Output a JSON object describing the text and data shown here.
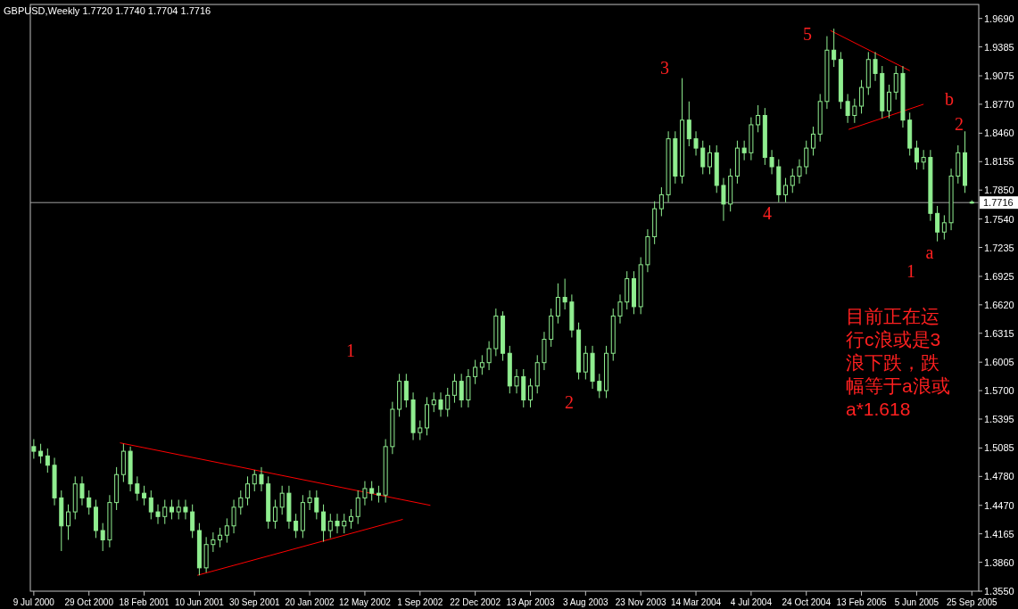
{
  "chart_data": {
    "type": "candlestick",
    "title": "GBPUSD,Weekly  1.7720 1.7740 1.7704 1.7716",
    "color": "#90ee90",
    "x": [
      "2000-07-09",
      "2000-07-23",
      "2000-08-06",
      "2000-08-20",
      "2000-09-03",
      "2000-09-17",
      "2000-10-01",
      "2000-10-15",
      "2000-10-29",
      "2000-11-12",
      "2000-11-26",
      "2000-12-10",
      "2000-12-24",
      "2001-01-07",
      "2001-01-21",
      "2001-02-04",
      "2001-02-18",
      "2001-03-04",
      "2001-03-18",
      "2001-04-01",
      "2001-04-15",
      "2001-04-29",
      "2001-05-13",
      "2001-05-27",
      "2001-06-10",
      "2001-06-24",
      "2001-07-08",
      "2001-07-22",
      "2001-08-05",
      "2001-08-19",
      "2001-09-02",
      "2001-09-16",
      "2001-09-30",
      "2001-10-14",
      "2001-10-28",
      "2001-11-11",
      "2001-11-25",
      "2001-12-09",
      "2001-12-23",
      "2002-01-06",
      "2002-01-20",
      "2002-02-03",
      "2002-02-17",
      "2002-03-03",
      "2002-03-17",
      "2002-03-31",
      "2002-04-14",
      "2002-04-28",
      "2002-05-12",
      "2002-05-26",
      "2002-06-09",
      "2002-06-23",
      "2002-07-07",
      "2002-07-21",
      "2002-08-04",
      "2002-08-18",
      "2002-09-01",
      "2002-09-15",
      "2002-09-29",
      "2002-10-13",
      "2002-10-27",
      "2002-11-10",
      "2002-11-24",
      "2002-12-08",
      "2002-12-22",
      "2003-01-05",
      "2003-01-19",
      "2003-02-02",
      "2003-02-16",
      "2003-03-02",
      "2003-03-16",
      "2003-03-30",
      "2003-04-13",
      "2003-04-27",
      "2003-05-11",
      "2003-05-25",
      "2003-06-08",
      "2003-06-22",
      "2003-07-06",
      "2003-07-20",
      "2003-08-03",
      "2003-08-17",
      "2003-08-31",
      "2003-09-14",
      "2003-09-28",
      "2003-10-12",
      "2003-10-26",
      "2003-11-09",
      "2003-11-23",
      "2003-12-07",
      "2003-12-21",
      "2004-01-04",
      "2004-01-18",
      "2004-02-01",
      "2004-02-15",
      "2004-02-29",
      "2004-03-14",
      "2004-03-28",
      "2004-04-11",
      "2004-04-25",
      "2004-05-09",
      "2004-05-23",
      "2004-06-06",
      "2004-06-20",
      "2004-07-04",
      "2004-07-18",
      "2004-08-01",
      "2004-08-15",
      "2004-08-29",
      "2004-09-12",
      "2004-09-26",
      "2004-10-10",
      "2004-10-24",
      "2004-11-07",
      "2004-11-21",
      "2004-12-05",
      "2004-12-19",
      "2005-01-02",
      "2005-01-16",
      "2005-01-30",
      "2005-02-13",
      "2005-02-27",
      "2005-03-13",
      "2005-03-27",
      "2005-04-10",
      "2005-04-24",
      "2005-05-08",
      "2005-05-22",
      "2005-06-05",
      "2005-06-19",
      "2005-07-03",
      "2005-07-17",
      "2005-07-31",
      "2005-08-14",
      "2005-08-28",
      "2005-09-11",
      "2005-09-25"
    ],
    "ohlc": [
      [
        1.51,
        1.518,
        1.497,
        1.505
      ],
      [
        1.505,
        1.513,
        1.492,
        1.5
      ],
      [
        1.5,
        1.508,
        1.482,
        1.49
      ],
      [
        1.49,
        1.498,
        1.447,
        1.455
      ],
      [
        1.455,
        1.463,
        1.398,
        1.425
      ],
      [
        1.425,
        1.448,
        1.41,
        1.44
      ],
      [
        1.44,
        1.478,
        1.432,
        1.47
      ],
      [
        1.47,
        1.478,
        1.447,
        1.455
      ],
      [
        1.455,
        1.463,
        1.437,
        1.445
      ],
      [
        1.445,
        1.453,
        1.412,
        1.42
      ],
      [
        1.42,
        1.428,
        1.398,
        1.41
      ],
      [
        1.41,
        1.458,
        1.402,
        1.45
      ],
      [
        1.45,
        1.488,
        1.442,
        1.48
      ],
      [
        1.48,
        1.513,
        1.472,
        1.505
      ],
      [
        1.505,
        1.51,
        1.462,
        1.47
      ],
      [
        1.47,
        1.478,
        1.452,
        1.46
      ],
      [
        1.46,
        1.468,
        1.447,
        1.455
      ],
      [
        1.455,
        1.463,
        1.432,
        1.44
      ],
      [
        1.44,
        1.448,
        1.427,
        1.435
      ],
      [
        1.435,
        1.453,
        1.427,
        1.445
      ],
      [
        1.445,
        1.453,
        1.432,
        1.44
      ],
      [
        1.44,
        1.453,
        1.432,
        1.445
      ],
      [
        1.445,
        1.453,
        1.432,
        1.44
      ],
      [
        1.44,
        1.448,
        1.412,
        1.42
      ],
      [
        1.42,
        1.428,
        1.372,
        1.38
      ],
      [
        1.38,
        1.413,
        1.375,
        1.405
      ],
      [
        1.405,
        1.418,
        1.397,
        1.41
      ],
      [
        1.41,
        1.423,
        1.402,
        1.415
      ],
      [
        1.415,
        1.433,
        1.407,
        1.425
      ],
      [
        1.425,
        1.453,
        1.417,
        1.445
      ],
      [
        1.445,
        1.463,
        1.437,
        1.455
      ],
      [
        1.455,
        1.478,
        1.447,
        1.47
      ],
      [
        1.47,
        1.485,
        1.462,
        1.48
      ],
      [
        1.48,
        1.488,
        1.462,
        1.47
      ],
      [
        1.47,
        1.478,
        1.422,
        1.43
      ],
      [
        1.43,
        1.453,
        1.422,
        1.445
      ],
      [
        1.445,
        1.468,
        1.437,
        1.46
      ],
      [
        1.46,
        1.468,
        1.422,
        1.43
      ],
      [
        1.43,
        1.438,
        1.412,
        1.42
      ],
      [
        1.42,
        1.458,
        1.412,
        1.45
      ],
      [
        1.45,
        1.463,
        1.442,
        1.455
      ],
      [
        1.455,
        1.463,
        1.432,
        1.44
      ],
      [
        1.44,
        1.448,
        1.408,
        1.42
      ],
      [
        1.42,
        1.438,
        1.412,
        1.43
      ],
      [
        1.43,
        1.438,
        1.417,
        1.425
      ],
      [
        1.425,
        1.438,
        1.417,
        1.43
      ],
      [
        1.43,
        1.443,
        1.422,
        1.435
      ],
      [
        1.435,
        1.463,
        1.427,
        1.455
      ],
      [
        1.455,
        1.473,
        1.447,
        1.465
      ],
      [
        1.465,
        1.473,
        1.452,
        1.46
      ],
      [
        1.46,
        1.468,
        1.45,
        1.458
      ],
      [
        1.458,
        1.518,
        1.45,
        1.51
      ],
      [
        1.51,
        1.558,
        1.502,
        1.55
      ],
      [
        1.55,
        1.588,
        1.542,
        1.58
      ],
      [
        1.58,
        1.588,
        1.552,
        1.56
      ],
      [
        1.56,
        1.568,
        1.517,
        1.525
      ],
      [
        1.525,
        1.538,
        1.517,
        1.53
      ],
      [
        1.53,
        1.563,
        1.522,
        1.555
      ],
      [
        1.555,
        1.568,
        1.547,
        1.56
      ],
      [
        1.56,
        1.568,
        1.542,
        1.55
      ],
      [
        1.55,
        1.573,
        1.542,
        1.565
      ],
      [
        1.565,
        1.588,
        1.557,
        1.58
      ],
      [
        1.58,
        1.588,
        1.552,
        1.56
      ],
      [
        1.56,
        1.593,
        1.552,
        1.585
      ],
      [
        1.585,
        1.603,
        1.577,
        1.595
      ],
      [
        1.595,
        1.608,
        1.587,
        1.6
      ],
      [
        1.6,
        1.623,
        1.592,
        1.615
      ],
      [
        1.615,
        1.658,
        1.607,
        1.65
      ],
      [
        1.65,
        1.655,
        1.602,
        1.61
      ],
      [
        1.61,
        1.618,
        1.567,
        1.575
      ],
      [
        1.575,
        1.593,
        1.567,
        1.585
      ],
      [
        1.585,
        1.593,
        1.552,
        1.56
      ],
      [
        1.56,
        1.583,
        1.552,
        1.575
      ],
      [
        1.575,
        1.608,
        1.567,
        1.6
      ],
      [
        1.6,
        1.633,
        1.592,
        1.625
      ],
      [
        1.625,
        1.658,
        1.617,
        1.65
      ],
      [
        1.65,
        1.685,
        1.642,
        1.67
      ],
      [
        1.67,
        1.69,
        1.657,
        1.665
      ],
      [
        1.665,
        1.673,
        1.627,
        1.635
      ],
      [
        1.635,
        1.643,
        1.582,
        1.59
      ],
      [
        1.59,
        1.618,
        1.582,
        1.61
      ],
      [
        1.61,
        1.618,
        1.572,
        1.58
      ],
      [
        1.58,
        1.588,
        1.562,
        1.57
      ],
      [
        1.57,
        1.618,
        1.562,
        1.61
      ],
      [
        1.61,
        1.658,
        1.602,
        1.65
      ],
      [
        1.65,
        1.673,
        1.642,
        1.665
      ],
      [
        1.665,
        1.698,
        1.657,
        1.69
      ],
      [
        1.69,
        1.698,
        1.652,
        1.66
      ],
      [
        1.66,
        1.713,
        1.652,
        1.705
      ],
      [
        1.705,
        1.743,
        1.697,
        1.735
      ],
      [
        1.735,
        1.773,
        1.727,
        1.765
      ],
      [
        1.765,
        1.788,
        1.757,
        1.78
      ],
      [
        1.78,
        1.848,
        1.772,
        1.84
      ],
      [
        1.84,
        1.848,
        1.792,
        1.8
      ],
      [
        1.8,
        1.905,
        1.792,
        1.86
      ],
      [
        1.86,
        1.88,
        1.832,
        1.84
      ],
      [
        1.84,
        1.848,
        1.822,
        1.83
      ],
      [
        1.83,
        1.838,
        1.802,
        1.81
      ],
      [
        1.81,
        1.833,
        1.802,
        1.825
      ],
      [
        1.825,
        1.833,
        1.782,
        1.79
      ],
      [
        1.79,
        1.798,
        1.752,
        1.77
      ],
      [
        1.77,
        1.808,
        1.762,
        1.8
      ],
      [
        1.8,
        1.838,
        1.792,
        1.83
      ],
      [
        1.83,
        1.838,
        1.817,
        1.825
      ],
      [
        1.825,
        1.863,
        1.817,
        1.855
      ],
      [
        1.855,
        1.876,
        1.847,
        1.865
      ],
      [
        1.865,
        1.873,
        1.812,
        1.82
      ],
      [
        1.82,
        1.828,
        1.802,
        1.81
      ],
      [
        1.81,
        1.818,
        1.772,
        1.78
      ],
      [
        1.78,
        1.798,
        1.772,
        1.79
      ],
      [
        1.79,
        1.808,
        1.782,
        1.8
      ],
      [
        1.8,
        1.818,
        1.792,
        1.81
      ],
      [
        1.81,
        1.838,
        1.802,
        1.83
      ],
      [
        1.83,
        1.853,
        1.822,
        1.845
      ],
      [
        1.845,
        1.888,
        1.837,
        1.88
      ],
      [
        1.88,
        1.95,
        1.872,
        1.935
      ],
      [
        1.935,
        1.958,
        1.917,
        1.925
      ],
      [
        1.925,
        1.933,
        1.872,
        1.88
      ],
      [
        1.88,
        1.888,
        1.857,
        1.865
      ],
      [
        1.865,
        1.883,
        1.857,
        1.875
      ],
      [
        1.875,
        1.903,
        1.867,
        1.895
      ],
      [
        1.895,
        1.933,
        1.887,
        1.925
      ],
      [
        1.925,
        1.933,
        1.902,
        1.91
      ],
      [
        1.91,
        1.918,
        1.862,
        1.87
      ],
      [
        1.87,
        1.898,
        1.862,
        1.89
      ],
      [
        1.89,
        1.918,
        1.882,
        1.91
      ],
      [
        1.91,
        1.918,
        1.852,
        1.86
      ],
      [
        1.86,
        1.868,
        1.822,
        1.83
      ],
      [
        1.83,
        1.838,
        1.807,
        1.815
      ],
      [
        1.815,
        1.828,
        1.807,
        1.82
      ],
      [
        1.82,
        1.828,
        1.752,
        1.76
      ],
      [
        1.76,
        1.768,
        1.73,
        1.74
      ],
      [
        1.74,
        1.758,
        1.732,
        1.75
      ],
      [
        1.75,
        1.808,
        1.742,
        1.8
      ],
      [
        1.8,
        1.833,
        1.792,
        1.825
      ],
      [
        1.825,
        1.848,
        1.782,
        1.79
      ],
      [
        1.772,
        1.774,
        1.7704,
        1.7716
      ]
    ],
    "series": [
      {
        "type": "line",
        "color": "#ff0000",
        "x": [
          "2000-12-31",
          "2002-09-22"
        ],
        "values": [
          1.514,
          1.447
        ]
      },
      {
        "type": "line",
        "color": "#ff0000",
        "x": [
          "2001-06-06",
          "2002-07-28"
        ],
        "values": [
          1.372,
          1.432
        ]
      },
      {
        "type": "line",
        "color": "#ff0000",
        "x": [
          "2004-12-12",
          "2005-05-22"
        ],
        "values": [
          1.956,
          1.913
        ]
      },
      {
        "type": "line",
        "color": "#ff0000",
        "x": [
          "2005-01-18",
          "2005-06-19"
        ],
        "values": [
          1.85,
          1.877
        ]
      }
    ],
    "ref_lines": [
      {
        "axis": "y",
        "value": 1.7716,
        "label": "1.7716",
        "color": "#a0a0a0"
      }
    ],
    "annotations": [
      "1",
      "2",
      "3",
      "4",
      "5",
      "b",
      "2",
      "a",
      "1",
      "目前正在运行c浪或是3浪下跌，跌幅等于a浪或a*1.618"
    ],
    "ylim": [
      1.355,
      1.984
    ],
    "yticks": [
      {
        "value": 1.969,
        "label": "1.9690"
      },
      {
        "value": 1.9385,
        "label": "1.9385"
      },
      {
        "value": 1.9075,
        "label": "1.9075"
      },
      {
        "value": 1.877,
        "label": "1.8770"
      },
      {
        "value": 1.846,
        "label": "1.8460"
      },
      {
        "value": 1.8155,
        "label": "1.8155"
      },
      {
        "value": 1.785,
        "label": "1.7850"
      },
      {
        "value": 1.754,
        "label": "1.7540"
      },
      {
        "value": 1.7235,
        "label": "1.7235"
      },
      {
        "value": 1.6925,
        "label": "1.6925"
      },
      {
        "value": 1.662,
        "label": "1.6620"
      },
      {
        "value": 1.6315,
        "label": "1.6315"
      },
      {
        "value": 1.6005,
        "label": "1.6005"
      },
      {
        "value": 1.57,
        "label": "1.5700"
      },
      {
        "value": 1.5395,
        "label": "1.5395"
      },
      {
        "value": 1.5085,
        "label": "1.5085"
      },
      {
        "value": 1.478,
        "label": "1.4780"
      },
      {
        "value": 1.447,
        "label": "1.4470"
      },
      {
        "value": 1.4165,
        "label": "1.4165"
      },
      {
        "value": 1.386,
        "label": "1.3860"
      },
      {
        "value": 1.355,
        "label": "1.3550"
      }
    ],
    "xlim": [
      "2000-07-02",
      "2005-10-09"
    ],
    "xticks": [
      {
        "value": "2000-07-09",
        "label": "9 Jul 2000"
      },
      {
        "value": "2000-10-29",
        "label": "29 Oct 2000"
      },
      {
        "value": "2001-02-18",
        "label": "18 Feb 2001"
      },
      {
        "value": "2001-06-10",
        "label": "10 Jun 2001"
      },
      {
        "value": "2001-09-30",
        "label": "30 Sep 2001"
      },
      {
        "value": "2002-01-20",
        "label": "20 Jan 2002"
      },
      {
        "value": "2002-05-12",
        "label": "12 May 2002"
      },
      {
        "value": "2002-09-01",
        "label": "1 Sep 2002"
      },
      {
        "value": "2002-12-22",
        "label": "22 Dec 2002"
      },
      {
        "value": "2003-04-13",
        "label": "13 Apr 2003"
      },
      {
        "value": "2003-08-03",
        "label": "3 Aug 2003"
      },
      {
        "value": "2003-11-23",
        "label": "23 Nov 2003"
      },
      {
        "value": "2004-03-14",
        "label": "14 Mar 2004"
      },
      {
        "value": "2004-07-04",
        "label": "4 Jul 2004"
      },
      {
        "value": "2004-10-24",
        "label": "24 Oct 2004"
      },
      {
        "value": "2005-02-13",
        "label": "13 Feb 2005"
      },
      {
        "value": "2005-06-05",
        "label": "5 Jun 2005"
      },
      {
        "value": "2005-09-25",
        "label": "25 Sep 2005"
      }
    ],
    "grid": false
  }
}
